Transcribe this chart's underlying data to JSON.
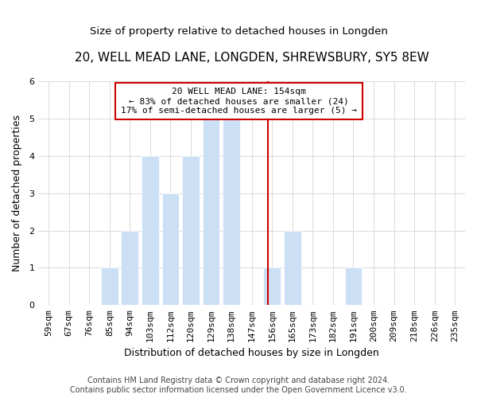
{
  "title": "20, WELL MEAD LANE, LONGDEN, SHREWSBURY, SY5 8EW",
  "subtitle": "Size of property relative to detached houses in Longden",
  "xlabel": "Distribution of detached houses by size in Longden",
  "ylabel": "Number of detached properties",
  "bar_labels": [
    "59sqm",
    "67sqm",
    "76sqm",
    "85sqm",
    "94sqm",
    "103sqm",
    "112sqm",
    "120sqm",
    "129sqm",
    "138sqm",
    "147sqm",
    "156sqm",
    "165sqm",
    "173sqm",
    "182sqm",
    "191sqm",
    "200sqm",
    "209sqm",
    "218sqm",
    "226sqm",
    "235sqm"
  ],
  "bar_heights": [
    0,
    0,
    0,
    1,
    2,
    4,
    3,
    4,
    5,
    5,
    0,
    1,
    2,
    0,
    0,
    1,
    0,
    0,
    0,
    0,
    0
  ],
  "bar_color": "#cce0f5",
  "bar_edge_color": "#ffffff",
  "annotation_title": "20 WELL MEAD LANE: 154sqm",
  "annotation_line1": "← 83% of detached houses are smaller (24)",
  "annotation_line2": "17% of semi-detached houses are larger (5) →",
  "annotation_box_edge": "#cc0000",
  "annotation_box_facecolor": "#ffffff",
  "vline_color": "#cc0000",
  "ylim": [
    0,
    6
  ],
  "yticks": [
    0,
    1,
    2,
    3,
    4,
    5,
    6
  ],
  "footer_line1": "Contains HM Land Registry data © Crown copyright and database right 2024.",
  "footer_line2": "Contains public sector information licensed under the Open Government Licence v3.0.",
  "bg_color": "#ffffff",
  "grid_color": "#dddddd",
  "title_fontsize": 11,
  "subtitle_fontsize": 9.5,
  "axis_label_fontsize": 9,
  "tick_fontsize": 8,
  "annotation_fontsize": 8,
  "footer_fontsize": 7
}
